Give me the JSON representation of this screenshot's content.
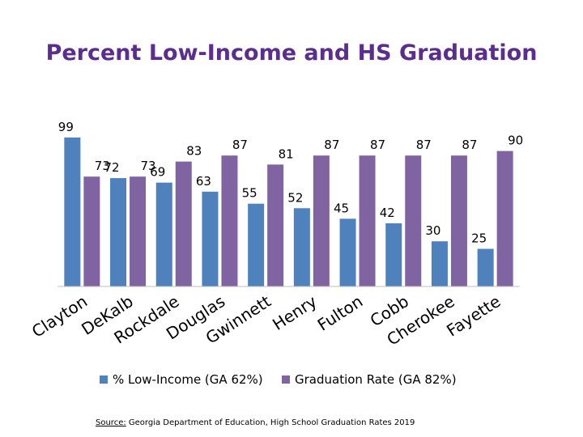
{
  "chart_data": {
    "type": "bar",
    "title": "Percent Low-Income and HS Graduation",
    "categories": [
      "Clayton",
      "DeKalb",
      "Rockdale",
      "Douglas",
      "Gwinnett",
      "Henry",
      "Fulton",
      "Cobb",
      "Cherokee",
      "Fayette"
    ],
    "series": [
      {
        "name": "% Low-Income (GA 62%)",
        "color": "#4f81bd",
        "values": [
          99,
          72,
          69,
          63,
          55,
          52,
          45,
          42,
          30,
          25
        ]
      },
      {
        "name": "Graduation Rate (GA 82%)",
        "color": "#8064a2",
        "values": [
          73,
          73,
          83,
          87,
          81,
          87,
          87,
          87,
          87,
          90
        ]
      }
    ],
    "ylim": [
      0,
      100
    ],
    "grid": false,
    "legend": "bottom"
  },
  "source": {
    "label": "Source:",
    "text": " Georgia Department of Education, High School Graduation Rates 2019"
  }
}
